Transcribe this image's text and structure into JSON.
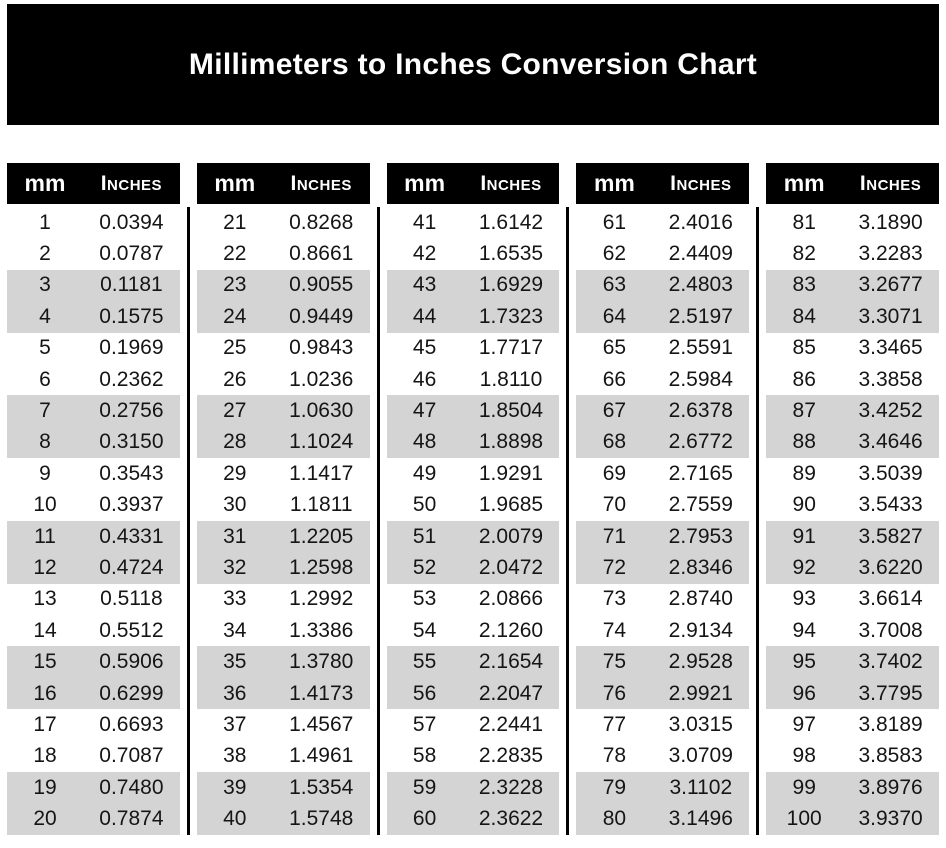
{
  "title": "Millimeters to Inches Conversion Chart",
  "colors": {
    "banner_bg": "#000000",
    "header_bg": "#000000",
    "header_text": "#ffffff",
    "row_shaded": "#d4d4d4",
    "row_plain": "#ffffff",
    "text": "#151515"
  },
  "chart_data": {
    "type": "table",
    "title": "Millimeters to Inches Conversion Chart",
    "columns": [
      "mm",
      "Inches"
    ],
    "layout": "5 side-by-side sub-tables, rows shaded in alternating pairs, black vertical dividers between tables",
    "tables": [
      [
        [
          1,
          "0.0394"
        ],
        [
          2,
          "0.0787"
        ],
        [
          3,
          "0.1181"
        ],
        [
          4,
          "0.1575"
        ],
        [
          5,
          "0.1969"
        ],
        [
          6,
          "0.2362"
        ],
        [
          7,
          "0.2756"
        ],
        [
          8,
          "0.3150"
        ],
        [
          9,
          "0.3543"
        ],
        [
          10,
          "0.3937"
        ],
        [
          11,
          "0.4331"
        ],
        [
          12,
          "0.4724"
        ],
        [
          13,
          "0.5118"
        ],
        [
          14,
          "0.5512"
        ],
        [
          15,
          "0.5906"
        ],
        [
          16,
          "0.6299"
        ],
        [
          17,
          "0.6693"
        ],
        [
          18,
          "0.7087"
        ],
        [
          19,
          "0.7480"
        ],
        [
          20,
          "0.7874"
        ]
      ],
      [
        [
          21,
          "0.8268"
        ],
        [
          22,
          "0.8661"
        ],
        [
          23,
          "0.9055"
        ],
        [
          24,
          "0.9449"
        ],
        [
          25,
          "0.9843"
        ],
        [
          26,
          "1.0236"
        ],
        [
          27,
          "1.0630"
        ],
        [
          28,
          "1.1024"
        ],
        [
          29,
          "1.1417"
        ],
        [
          30,
          "1.1811"
        ],
        [
          31,
          "1.2205"
        ],
        [
          32,
          "1.2598"
        ],
        [
          33,
          "1.2992"
        ],
        [
          34,
          "1.3386"
        ],
        [
          35,
          "1.3780"
        ],
        [
          36,
          "1.4173"
        ],
        [
          37,
          "1.4567"
        ],
        [
          38,
          "1.4961"
        ],
        [
          39,
          "1.5354"
        ],
        [
          40,
          "1.5748"
        ]
      ],
      [
        [
          41,
          "1.6142"
        ],
        [
          42,
          "1.6535"
        ],
        [
          43,
          "1.6929"
        ],
        [
          44,
          "1.7323"
        ],
        [
          45,
          "1.7717"
        ],
        [
          46,
          "1.8110"
        ],
        [
          47,
          "1.8504"
        ],
        [
          48,
          "1.8898"
        ],
        [
          49,
          "1.9291"
        ],
        [
          50,
          "1.9685"
        ],
        [
          51,
          "2.0079"
        ],
        [
          52,
          "2.0472"
        ],
        [
          53,
          "2.0866"
        ],
        [
          54,
          "2.1260"
        ],
        [
          55,
          "2.1654"
        ],
        [
          56,
          "2.2047"
        ],
        [
          57,
          "2.2441"
        ],
        [
          58,
          "2.2835"
        ],
        [
          59,
          "2.3228"
        ],
        [
          60,
          "2.3622"
        ]
      ],
      [
        [
          61,
          "2.4016"
        ],
        [
          62,
          "2.4409"
        ],
        [
          63,
          "2.4803"
        ],
        [
          64,
          "2.5197"
        ],
        [
          65,
          "2.5591"
        ],
        [
          66,
          "2.5984"
        ],
        [
          67,
          "2.6378"
        ],
        [
          68,
          "2.6772"
        ],
        [
          69,
          "2.7165"
        ],
        [
          70,
          "2.7559"
        ],
        [
          71,
          "2.7953"
        ],
        [
          72,
          "2.8346"
        ],
        [
          73,
          "2.8740"
        ],
        [
          74,
          "2.9134"
        ],
        [
          75,
          "2.9528"
        ],
        [
          76,
          "2.9921"
        ],
        [
          77,
          "3.0315"
        ],
        [
          78,
          "3.0709"
        ],
        [
          79,
          "3.1102"
        ],
        [
          80,
          "3.1496"
        ]
      ],
      [
        [
          81,
          "3.1890"
        ],
        [
          82,
          "3.2283"
        ],
        [
          83,
          "3.2677"
        ],
        [
          84,
          "3.3071"
        ],
        [
          85,
          "3.3465"
        ],
        [
          86,
          "3.3858"
        ],
        [
          87,
          "3.4252"
        ],
        [
          88,
          "3.4646"
        ],
        [
          89,
          "3.5039"
        ],
        [
          90,
          "3.5433"
        ],
        [
          91,
          "3.5827"
        ],
        [
          92,
          "3.6220"
        ],
        [
          93,
          "3.6614"
        ],
        [
          94,
          "3.7008"
        ],
        [
          95,
          "3.7402"
        ],
        [
          96,
          "3.7795"
        ],
        [
          97,
          "3.8189"
        ],
        [
          98,
          "3.8583"
        ],
        [
          99,
          "3.8976"
        ],
        [
          100,
          "3.9370"
        ]
      ]
    ]
  }
}
